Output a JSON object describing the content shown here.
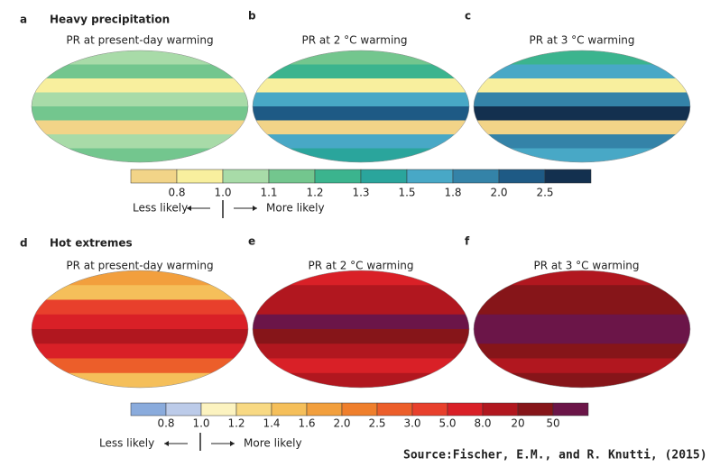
{
  "figure": {
    "sections": [
      {
        "letter": "a",
        "heading": "Heavy precipitation",
        "panels": [
          {
            "letter": "a",
            "title": "PR at present-day warming"
          },
          {
            "letter": "b",
            "title": "PR at 2 °C warming"
          },
          {
            "letter": "c",
            "title": "PR at 3 °C warming"
          }
        ],
        "colorbar": {
          "colors": [
            "#f2d488",
            "#f8ef9e",
            "#a8dba8",
            "#73c68e",
            "#3bb48e",
            "#2aa59c",
            "#48a8c6",
            "#3483a8",
            "#1e5a85",
            "#13304f"
          ],
          "labels": [
            "0.8",
            "1.0",
            "1.1",
            "1.2",
            "1.3",
            "1.5",
            "1.8",
            "2.0",
            "2.5"
          ]
        },
        "less": "Less likely",
        "more": "More likely"
      },
      {
        "letter": "d",
        "heading": "Hot extremes",
        "panels": [
          {
            "letter": "d",
            "title": "PR at present-day warming"
          },
          {
            "letter": "e",
            "title": "PR at 2 °C warming"
          },
          {
            "letter": "f",
            "title": "PR at 3 °C warming"
          }
        ],
        "colorbar": {
          "colors": [
            "#8aabdc",
            "#bccbe9",
            "#fcf3c0",
            "#f8d983",
            "#f5bf5a",
            "#f29f3d",
            "#ef7f2c",
            "#ec5e2a",
            "#e8402c",
            "#d92027",
            "#b1171f",
            "#861519",
            "#6b1548"
          ],
          "labels": [
            "0.8",
            "1.0",
            "1.2",
            "1.4",
            "1.6",
            "2.0",
            "2.5",
            "3.0",
            "5.0",
            "8.0",
            "20",
            "50"
          ]
        },
        "less": "Less likely",
        "more": "More likely"
      }
    ],
    "source": "Source:Fischer, E.M., and R. Knutti, (2015)"
  }
}
